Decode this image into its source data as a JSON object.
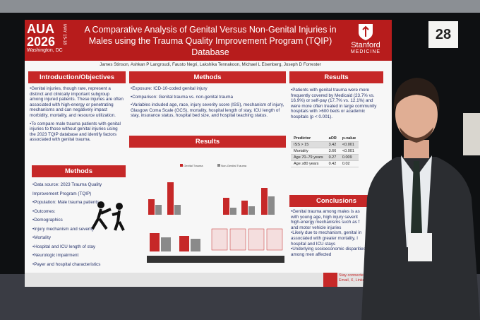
{
  "board_number": "28",
  "header": {
    "logo": {
      "line1": "AUA",
      "line2": "2026",
      "dates": "MAY 15-18",
      "city": "Washington, DC"
    },
    "title": "A Comparative Analysis of Genital Versus Non-Genital Injuries in Males using the Trauma Quality Improvement Program (TQIP) Database",
    "authors": "James Stinson, Ashkan P Langroudi, Fausto Negri, Lakshika Tennakoon, Michael L Eisenberg, Joseph D Forrester",
    "institution": {
      "line1": "Stanford",
      "line2": "MEDICINE"
    }
  },
  "intro": {
    "heading": "Introduction/Objectives",
    "paragraphs": [
      "•Genital injuries, though rare, represent a distinct and clinically important subgroup among injured patients. These injuries are often associated with high-energy or penetrating mechanisms and can negatively impact morbidity, mortality, and resource utilization.",
      "•To compare male trauma patients with genital injuries to those without genital injuries using the 2023 TQIP database and identify factors associated with genital trauma."
    ]
  },
  "methods_left": {
    "heading": "Methods",
    "items": [
      "•Data source: 2023 Trauma Quality Improvement Program (TQIP)",
      "•Population: Male trauma patients",
      "•Outcomes:",
      "•Demographics",
      "•Injury mechanism and severity",
      "•Mortality",
      "•Hospital and ICU length of stay",
      "•Neurologic impairment",
      "•Payer and hospital characteristics"
    ]
  },
  "methods_mid": {
    "heading": "Methods",
    "items": [
      "•Exposure: ICD-10-coded genital injury",
      "•Comparison: Genital trauma vs. non-genital trauma",
      "•Variables included age, race, injury severity score (ISS), mechanism of injury, Glasgow Coma Scale (GCS), mortality, hospital length of stay, ICU length of stay, insurance status, hospital bed size, and hospital teaching status."
    ]
  },
  "results_mid": {
    "heading": "Results",
    "legend": [
      "Genital Trauma",
      "Non-Genital Trauma"
    ]
  },
  "results_right": {
    "heading": "Results",
    "text": "•Patients with genital trauma were more frequently covered by Medicaid (23.7% vs. 16.9%) or self-pay (17.7% vs. 12.1%) and were more often treated in large community hospitals with >600 beds or academic hospitals (p < 0.001).",
    "table": {
      "header": [
        "Predictor",
        "aOR",
        "p-value"
      ],
      "rows": [
        [
          "ISS > 15",
          "3.42",
          "<0.001"
        ],
        [
          "Mortality",
          "3.66",
          "<0.001"
        ],
        [
          "Age 70–79 years",
          "0.27",
          "0.009"
        ],
        [
          "Age ≥80 years",
          "0.42",
          "0.02"
        ]
      ]
    }
  },
  "conclusions": {
    "heading": "Conclusions",
    "items": [
      "•Genital trauma among males is as",
      "with young age, high injury severit",
      "high-energy mechanisms such as f",
      "and motor vehicle injuries",
      "•Likely due to mechanism, genital in",
      "associated with greater mortality, l",
      "hospital and ICU stays",
      "•Underlying socioeconomic disparities",
      "among men affected"
    ]
  },
  "footer": {
    "qr_text": [
      "Stay connected – scan",
      "Email, X, LinkedIn, and"
    ]
  }
}
